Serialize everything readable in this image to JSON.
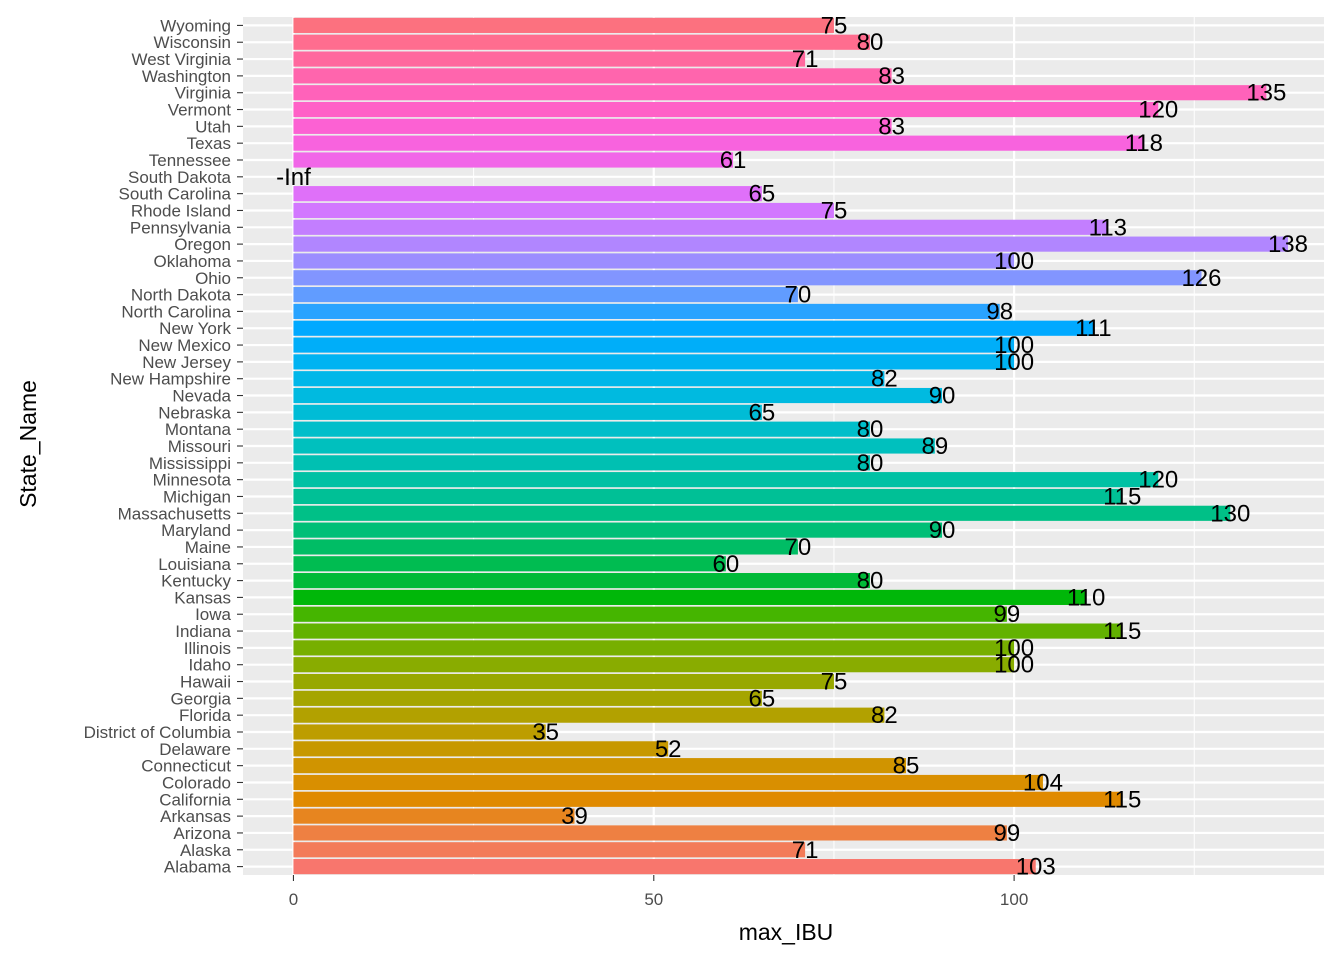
{
  "chart_data": {
    "type": "bar",
    "orientation": "horizontal",
    "xlabel": "max_IBU",
    "ylabel": "State_Name",
    "xlim": [
      -7,
      143
    ],
    "x_ticks": [
      0,
      50,
      100
    ],
    "grid": true,
    "legend": "none",
    "categories": [
      "Alabama",
      "Alaska",
      "Arizona",
      "Arkansas",
      "California",
      "Colorado",
      "Connecticut",
      "Delaware",
      "District of Columbia",
      "Florida",
      "Georgia",
      "Hawaii",
      "Idaho",
      "Illinois",
      "Indiana",
      "Iowa",
      "Kansas",
      "Kentucky",
      "Louisiana",
      "Maine",
      "Maryland",
      "Massachusetts",
      "Michigan",
      "Minnesota",
      "Mississippi",
      "Missouri",
      "Montana",
      "Nebraska",
      "Nevada",
      "New Hampshire",
      "New Jersey",
      "New Mexico",
      "New York",
      "North Carolina",
      "North Dakota",
      "Ohio",
      "Oklahoma",
      "Oregon",
      "Pennsylvania",
      "Rhode Island",
      "South Carolina",
      "South Dakota",
      "Tennessee",
      "Texas",
      "Utah",
      "Vermont",
      "Virginia",
      "Washington",
      "West Virginia",
      "Wisconsin",
      "Wyoming"
    ],
    "values": [
      103,
      71,
      99,
      39,
      115,
      104,
      85,
      52,
      35,
      82,
      65,
      75,
      100,
      100,
      115,
      99,
      110,
      80,
      60,
      70,
      90,
      130,
      115,
      120,
      80,
      89,
      80,
      65,
      90,
      82,
      100,
      100,
      111,
      98,
      70,
      126,
      100,
      138,
      113,
      75,
      65,
      null,
      61,
      118,
      83,
      120,
      135,
      83,
      71,
      80,
      75
    ],
    "labels": [
      "103",
      "71",
      "99",
      "39",
      "115",
      "104",
      "85",
      "52",
      "35",
      "82",
      "65",
      "75",
      "100",
      "100",
      "115",
      "99",
      "110",
      "80",
      "60",
      "70",
      "90",
      "130",
      "115",
      "120",
      "80",
      "89",
      "80",
      "65",
      "90",
      "82",
      "100",
      "100",
      "111",
      "98",
      "70",
      "126",
      "100",
      "138",
      "113",
      "75",
      "65",
      "-Inf",
      "61",
      "118",
      "83",
      "120",
      "135",
      "83",
      "71",
      "80",
      "75"
    ]
  }
}
